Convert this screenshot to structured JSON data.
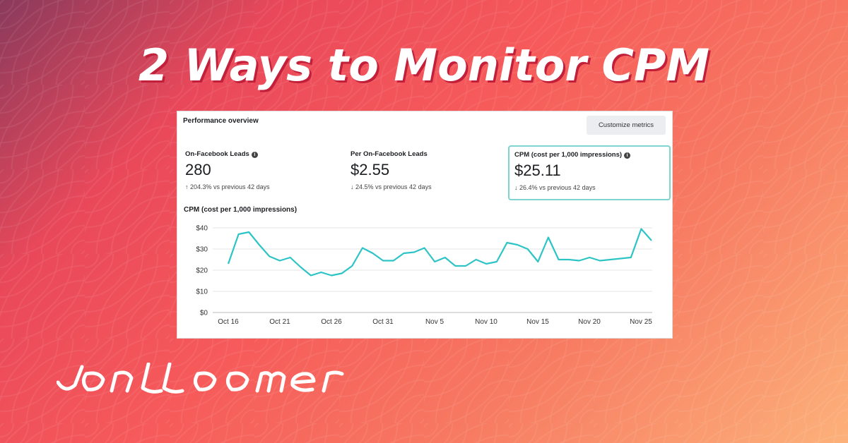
{
  "headline": "2 Ways to Monitor CPM",
  "panel": {
    "title": "Performance overview",
    "customize_label": "Customize metrics"
  },
  "metrics": [
    {
      "label": "On-Facebook Leads",
      "value": "280",
      "arrow": "↑",
      "change": "204.3% vs previous 42 days",
      "info": true
    },
    {
      "label": "Per On-Facebook Leads",
      "value": "$2.55",
      "arrow": "↓",
      "change": "24.5% vs previous 42 days",
      "info": false
    },
    {
      "label": "CPM (cost per 1,000 impressions)",
      "value": "$25.11",
      "arrow": "↓",
      "change": "26.4% vs previous 42 days",
      "info": true,
      "selected": true
    }
  ],
  "colors": {
    "line": "#2ec4c6",
    "selected_border": "#7fd3d0"
  },
  "logo_text": "jon loomer",
  "chart_data": {
    "type": "line",
    "title": "CPM (cost per 1,000 impressions)",
    "ylim": [
      0,
      40
    ],
    "y_ticks": [
      "$0",
      "$10",
      "$20",
      "$30",
      "$40"
    ],
    "x_tick_labels": [
      "Oct 16",
      "Oct 21",
      "Oct 26",
      "Oct 31",
      "Nov 5",
      "Nov 10",
      "Nov 15",
      "Nov 20",
      "Nov 25"
    ],
    "grid": true,
    "series": [
      {
        "values": [
          23,
          37,
          38,
          32,
          26.5,
          24.5,
          26,
          21.5,
          17.5,
          19,
          17.5,
          18.5,
          22,
          30.5,
          28,
          24.5,
          24.5,
          28,
          28.5,
          30.5,
          24,
          26,
          22,
          22,
          25,
          23,
          24,
          33,
          32,
          30,
          24,
          35.5,
          25,
          25,
          24.5,
          26,
          24.5,
          25,
          25.5,
          26,
          39.5,
          34
        ]
      }
    ]
  }
}
